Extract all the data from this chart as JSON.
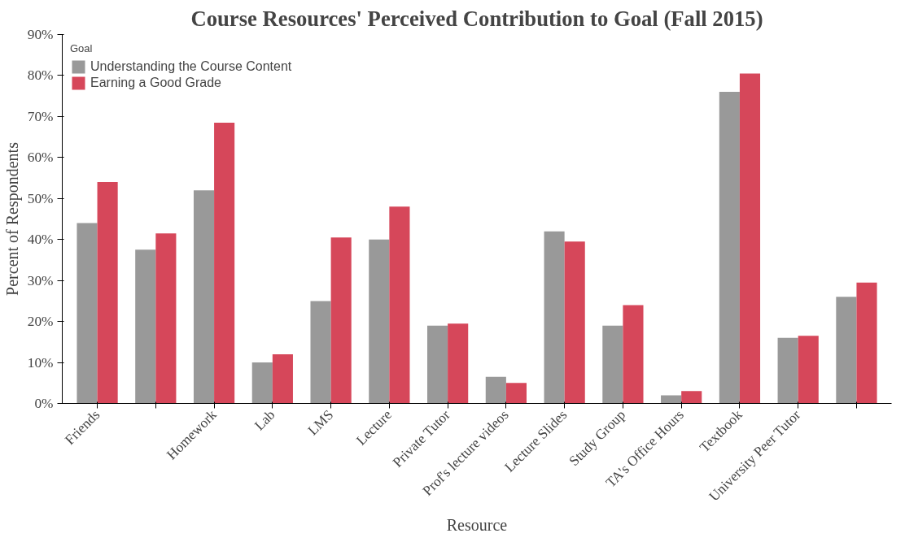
{
  "chart_data": {
    "type": "bar",
    "title": "Course Resources' Perceived Contribution to Goal (Fall 2015)",
    "xlabel": "Resource",
    "ylabel": "Percent of Respondents",
    "legend_title": "Goal",
    "legend": "top left",
    "grid": false,
    "categories": [
      "Friends",
      null,
      "Homework",
      "Lab",
      "LMS",
      "Lecture",
      "Private Tutor",
      "Prof's lecture videos",
      "Lecture Slides",
      "Study Group",
      "TA's Office Hours",
      "Textbook",
      "University Peer Tutor",
      null
    ],
    "series": [
      {
        "name": "Understanding the Course Content",
        "color": "#999999",
        "values": [
          44,
          37.5,
          52,
          10,
          25,
          40,
          19,
          6.5,
          42,
          19,
          2,
          76,
          16,
          26
        ]
      },
      {
        "name": "Earning a Good Grade",
        "color": "#d6475a",
        "values": [
          54,
          41.5,
          68.5,
          12,
          40.5,
          48,
          19.5,
          5,
          39.5,
          24,
          3,
          80.5,
          16.5,
          29.5
        ]
      }
    ],
    "ylim": [
      0,
      90
    ],
    "yticks": [
      {
        "value": 0,
        "label": "0%"
      },
      {
        "value": 10,
        "label": "10%"
      },
      {
        "value": 20,
        "label": "20%"
      },
      {
        "value": 30,
        "label": "30%"
      },
      {
        "value": 40,
        "label": "40%"
      },
      {
        "value": 50,
        "label": "50%"
      },
      {
        "value": 60,
        "label": "60%"
      },
      {
        "value": 70,
        "label": "70%"
      },
      {
        "value": 80,
        "label": "80%"
      },
      {
        "value": 90,
        "label": "90%"
      }
    ]
  }
}
